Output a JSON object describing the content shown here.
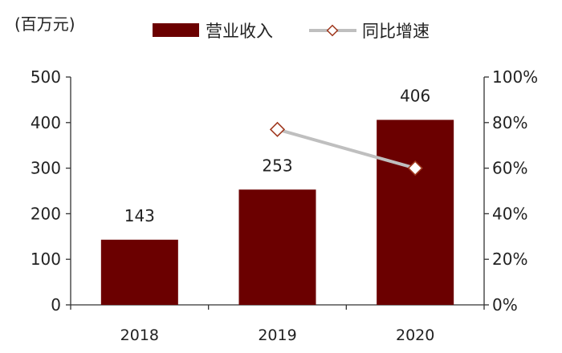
{
  "chart_data": {
    "type": "bar",
    "unit_label": "(百万元)",
    "categories": [
      "2018",
      "2019",
      "2020"
    ],
    "series": [
      {
        "name": "营业收入",
        "kind": "bar",
        "axis": "left",
        "values": [
          143,
          253,
          406
        ],
        "labels": [
          "143",
          "253",
          "406"
        ],
        "color": "#6b0000"
      },
      {
        "name": "同比增速",
        "kind": "line",
        "axis": "right",
        "values": [
          null,
          77,
          60
        ],
        "line_color": "#bfbfbf",
        "marker": "diamond",
        "marker_color": "#a0391f"
      }
    ],
    "y_left": {
      "range": [
        0,
        500
      ],
      "ticks": [
        "0",
        "100",
        "200",
        "300",
        "400",
        "500"
      ]
    },
    "y_right": {
      "range": [
        0,
        100
      ],
      "ticks": [
        "0%",
        "20%",
        "40%",
        "60%",
        "80%",
        "100%"
      ]
    },
    "grid": false,
    "legend": "top-center"
  }
}
